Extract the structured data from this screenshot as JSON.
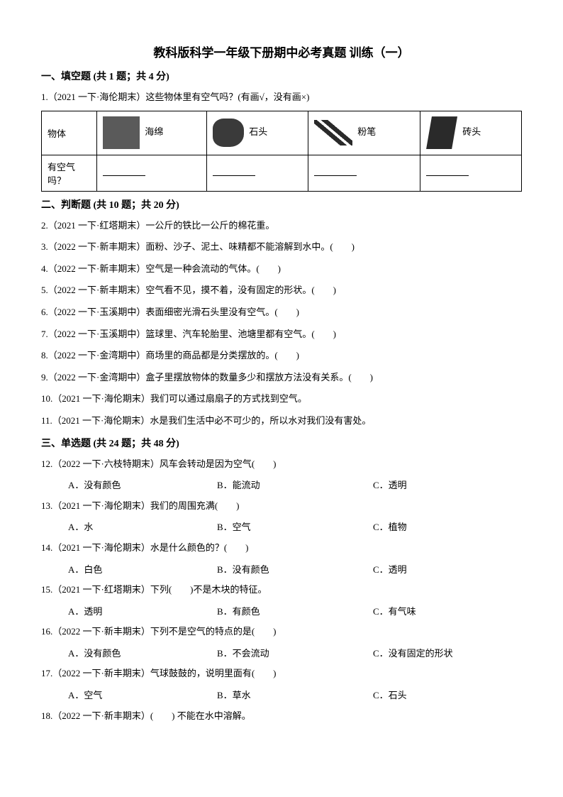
{
  "title": "教科版科学一年级下册期中必考真题 训练（一）",
  "sections": {
    "s1": {
      "header": "一、填空题 (共 1 题；共 4 分)",
      "q1": {
        "text": "1.（2021 一下·海伦期末）这些物体里有空气吗？(有画√，没有画×)",
        "table": {
          "row1_label": "物体",
          "labels": [
            "海绵",
            "石头",
            "粉笔",
            "砖头"
          ],
          "row2_label": "有空气吗？"
        }
      }
    },
    "s2": {
      "header": "二、判断题 (共 10 题；共 20 分)",
      "items": [
        "2.（2021 一下·红塔期末）一公斤的铁比一公斤的棉花重。",
        "3.（2022 一下·新丰期末）面粉、沙子、泥土、味精都不能溶解到水中。(　　)",
        "4.（2022 一下·新丰期末）空气是一种会流动的气体。(　　)",
        "5.（2022 一下·新丰期末）空气看不见，摸不着，没有固定的形状。(　　)",
        "6.（2022 一下·玉溪期中）表面细密光滑石头里没有空气。(　　)",
        "7.（2022 一下·玉溪期中）篮球里、汽车轮胎里、池塘里都有空气。(　　)",
        "8.（2022 一下·金湾期中）商场里的商品都是分类摆放的。(　　)",
        "9.（2022 一下·金湾期中）盒子里摆放物体的数量多少和摆放方法没有关系。(　　)",
        "10.（2021 一下·海伦期末）我们可以通过扇扇子的方式找到空气。",
        "11.（2021 一下·海伦期末）水是我们生活中必不可少的，所以水对我们没有害处。"
      ]
    },
    "s3": {
      "header": "三、单选题 (共 24 题；共 48 分)",
      "questions": [
        {
          "stem": "12.（2022 一下·六枝特期末）风车会转动是因为空气(　　)",
          "opts": [
            "A．没有颜色",
            "B．能流动",
            "C．透明"
          ]
        },
        {
          "stem": "13.（2021 一下·海伦期末）我们的周围充满(　　)",
          "opts": [
            "A．水",
            "B．空气",
            "C．植物"
          ]
        },
        {
          "stem": "14.（2021 一下·海伦期末）水是什么颜色的？(　　)",
          "opts": [
            "A．白色",
            "B．没有颜色",
            "C．透明"
          ]
        },
        {
          "stem": "15.（2021 一下·红塔期末）下列(　　)不是木块的特征。",
          "opts": [
            "A．透明",
            "B．有颜色",
            "C．有气味"
          ]
        },
        {
          "stem": "16.（2022 一下·新丰期末）下列不是空气的特点的是(　　)",
          "opts": [
            "A．没有颜色",
            "B．不会流动",
            "C．没有固定的形状"
          ]
        },
        {
          "stem": "17.（2022 一下·新丰期末）气球鼓鼓的，说明里面有(　　)",
          "opts": [
            "A．空气",
            "B．草水",
            "C．石头"
          ]
        },
        {
          "stem": "18.（2022 一下·新丰期末）(　　) 不能在水中溶解。",
          "opts": null
        }
      ]
    }
  }
}
